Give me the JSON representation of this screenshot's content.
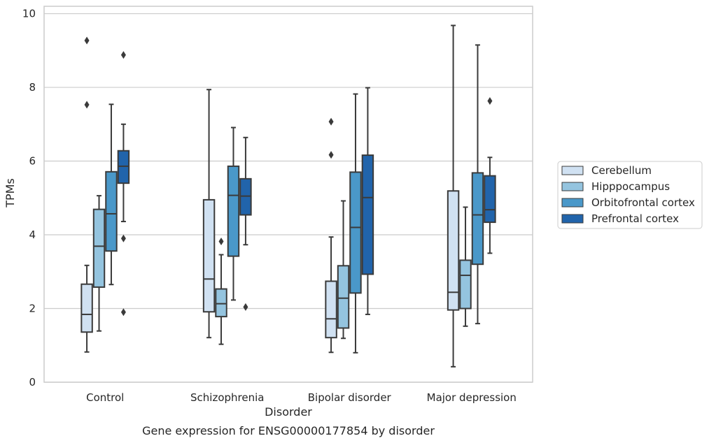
{
  "chart_data": {
    "type": "box",
    "caption": "Gene expression for ENSG00000177854 by disorder",
    "xlabel": "Disorder",
    "ylabel": "TPMs",
    "ylim": [
      0,
      10.2
    ],
    "yticks": [
      "0",
      "2",
      "4",
      "6",
      "8",
      "10"
    ],
    "ytick_values": [
      0,
      2,
      4,
      6,
      8,
      10
    ],
    "grid": true,
    "legend_position": "right",
    "categories": [
      "Control",
      "Schizophrenia",
      "Bipolar disorder",
      "Major depression"
    ],
    "series": [
      {
        "name": "Cerebellum",
        "color": "#d0e1f2",
        "boxes": [
          {
            "whisker_low": 0.82,
            "q1": 1.36,
            "median": 1.84,
            "q3": 2.66,
            "whisker_high": 3.17,
            "outliers": [
              7.53,
              9.27
            ]
          },
          {
            "whisker_low": 1.21,
            "q1": 1.91,
            "median": 2.8,
            "q3": 4.95,
            "whisker_high": 7.94,
            "outliers": []
          },
          {
            "whisker_low": 0.81,
            "q1": 1.21,
            "median": 1.72,
            "q3": 2.74,
            "whisker_high": 3.94,
            "outliers": [
              6.17,
              7.07
            ]
          },
          {
            "whisker_low": 0.42,
            "q1": 1.96,
            "median": 2.44,
            "q3": 5.19,
            "whisker_high": 9.68,
            "outliers": []
          }
        ]
      },
      {
        "name": "Hipppocampus",
        "color": "#94c4df",
        "boxes": [
          {
            "whisker_low": 1.39,
            "q1": 2.58,
            "median": 3.69,
            "q3": 4.69,
            "whisker_high": 5.06,
            "outliers": []
          },
          {
            "whisker_low": 1.03,
            "q1": 1.78,
            "median": 2.13,
            "q3": 2.53,
            "whisker_high": 3.46,
            "outliers": [
              3.82
            ]
          },
          {
            "whisker_low": 1.19,
            "q1": 1.47,
            "median": 2.28,
            "q3": 3.16,
            "whisker_high": 4.92,
            "outliers": []
          },
          {
            "whisker_low": 1.52,
            "q1": 2.0,
            "median": 2.9,
            "q3": 3.31,
            "whisker_high": 4.75,
            "outliers": []
          }
        ]
      },
      {
        "name": "Orbitofrontal cortex",
        "color": "#4a98c9",
        "boxes": [
          {
            "whisker_low": 2.65,
            "q1": 3.56,
            "median": 4.57,
            "q3": 5.71,
            "whisker_high": 7.54,
            "outliers": []
          },
          {
            "whisker_low": 2.23,
            "q1": 3.42,
            "median": 5.07,
            "q3": 5.86,
            "whisker_high": 6.91,
            "outliers": []
          },
          {
            "whisker_low": 0.8,
            "q1": 2.42,
            "median": 4.2,
            "q3": 5.7,
            "whisker_high": 7.82,
            "outliers": []
          },
          {
            "whisker_low": 1.59,
            "q1": 3.2,
            "median": 4.54,
            "q3": 5.68,
            "whisker_high": 9.15,
            "outliers": []
          }
        ]
      },
      {
        "name": "Prefrontal cortex",
        "color": "#2164ab",
        "boxes": [
          {
            "whisker_low": 4.36,
            "q1": 5.4,
            "median": 5.86,
            "q3": 6.28,
            "whisker_high": 7.0,
            "outliers": [
              1.9,
              3.9,
              8.88
            ]
          },
          {
            "whisker_low": 3.73,
            "q1": 4.54,
            "median": 5.05,
            "q3": 5.52,
            "whisker_high": 6.64,
            "outliers": [
              2.04
            ]
          },
          {
            "whisker_low": 1.84,
            "q1": 2.93,
            "median": 5.01,
            "q3": 6.16,
            "whisker_high": 7.99,
            "outliers": []
          },
          {
            "whisker_low": 3.5,
            "q1": 4.34,
            "median": 4.68,
            "q3": 5.6,
            "whisker_high": 6.1,
            "outliers": [
              7.63
            ]
          }
        ]
      }
    ]
  }
}
